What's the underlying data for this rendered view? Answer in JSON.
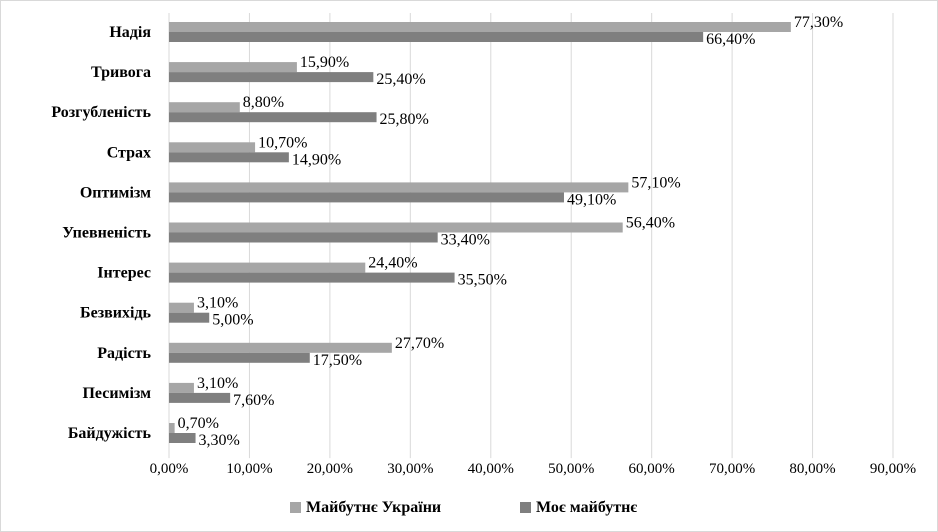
{
  "chart_data": {
    "type": "bar",
    "orientation": "horizontal",
    "title": "",
    "xlabel": "",
    "ylabel": "",
    "categories": [
      "Надія",
      "Тривога",
      "Розгубленість",
      "Страх",
      "Оптимізм",
      "Упевненість",
      "Інтерес",
      "Безвихідь",
      "Радість",
      "Песимізм",
      "Байдужість"
    ],
    "series": [
      {
        "name": "Майбутнє України",
        "color": "#a6a6a6",
        "values": [
          77.3,
          15.9,
          8.8,
          10.7,
          57.1,
          56.4,
          24.4,
          3.1,
          27.7,
          3.1,
          0.7
        ],
        "labels": [
          "77,30%",
          "15,90%",
          "8,80%",
          "10,70%",
          "57,10%",
          "56,40%",
          "24,40%",
          "3,10%",
          "27,70%",
          "3,10%",
          "0,70%"
        ]
      },
      {
        "name": "Моє майбутнє",
        "color": "#7f7f7f",
        "values": [
          66.4,
          25.4,
          25.8,
          14.9,
          49.1,
          33.4,
          35.5,
          5.0,
          17.5,
          7.6,
          3.3
        ],
        "labels": [
          "66,40%",
          "25,40%",
          "25,80%",
          "14,90%",
          "49,10%",
          "33,40%",
          "35,50%",
          "5,00%",
          "17,50%",
          "7,60%",
          "3,30%"
        ]
      }
    ],
    "xlim": [
      0,
      90
    ],
    "xticks": [
      0,
      10,
      20,
      30,
      40,
      50,
      60,
      70,
      80,
      90
    ],
    "xtick_labels": [
      "0,00%",
      "10,00%",
      "20,00%",
      "30,00%",
      "40,00%",
      "50,00%",
      "60,00%",
      "70,00%",
      "80,00%",
      "90,00%"
    ],
    "grid": true,
    "legend": "bottom"
  }
}
